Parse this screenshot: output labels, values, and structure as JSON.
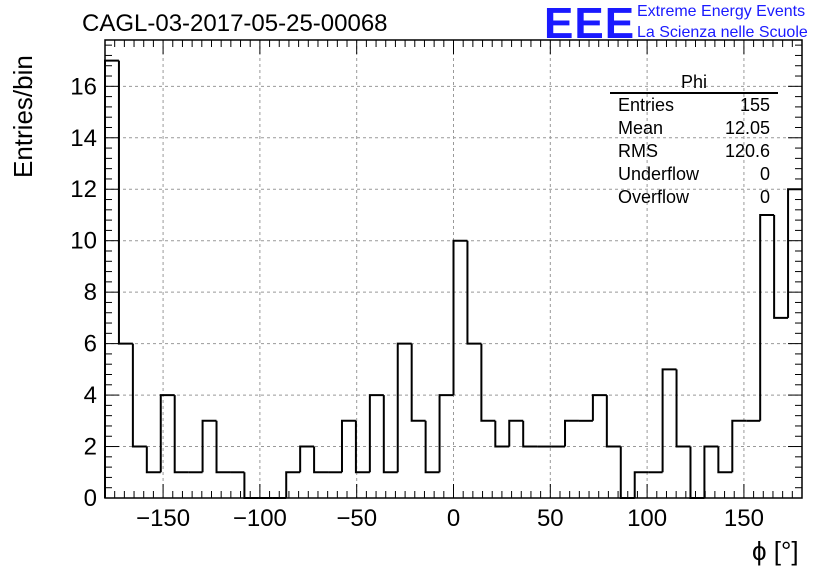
{
  "title": "CAGL-03-2017-05-25-00068",
  "logo": {
    "mark": "EEE",
    "line1": "Extreme Energy Events",
    "line2": "La Scienza nelle Scuole",
    "color": "#1a1aff"
  },
  "stats_box": {
    "name": "Phi",
    "rows": [
      {
        "label": "Entries",
        "value": "155"
      },
      {
        "label": "Mean",
        "value": "12.05"
      },
      {
        "label": "RMS",
        "value": "120.6"
      },
      {
        "label": "Underflow",
        "value": "0"
      },
      {
        "label": "Overflow",
        "value": "0"
      }
    ]
  },
  "chart_data": {
    "type": "bar",
    "histogram": "step",
    "title": "CAGL-03-2017-05-25-00068",
    "xlabel": "ϕ [°]",
    "ylabel": "Entries/bin",
    "xlim": [
      -180,
      180
    ],
    "ylim": [
      0,
      17.8
    ],
    "bin_width": 7.2,
    "x_ticks": [
      -150,
      -100,
      -50,
      0,
      50,
      100,
      150
    ],
    "x_tick_labels": [
      "−150",
      "−100",
      "−50",
      "0",
      "50",
      "100",
      "150"
    ],
    "y_ticks": [
      0,
      2,
      4,
      6,
      8,
      10,
      12,
      14,
      16
    ],
    "y_tick_labels": [
      "0",
      "2",
      "4",
      "6",
      "8",
      "10",
      "12",
      "14",
      "16"
    ],
    "grid": true,
    "bin_edges_start": -180,
    "values": [
      17,
      6,
      2,
      1,
      4,
      1,
      1,
      3,
      1,
      1,
      0,
      0,
      0,
      1,
      2,
      1,
      1,
      3,
      1,
      4,
      1,
      6,
      3,
      1,
      4,
      10,
      6,
      3,
      2,
      3,
      2,
      2,
      2,
      3,
      3,
      4,
      2,
      0,
      1,
      1,
      5,
      2,
      0,
      2,
      1,
      3,
      3,
      11,
      7,
      12
    ]
  }
}
